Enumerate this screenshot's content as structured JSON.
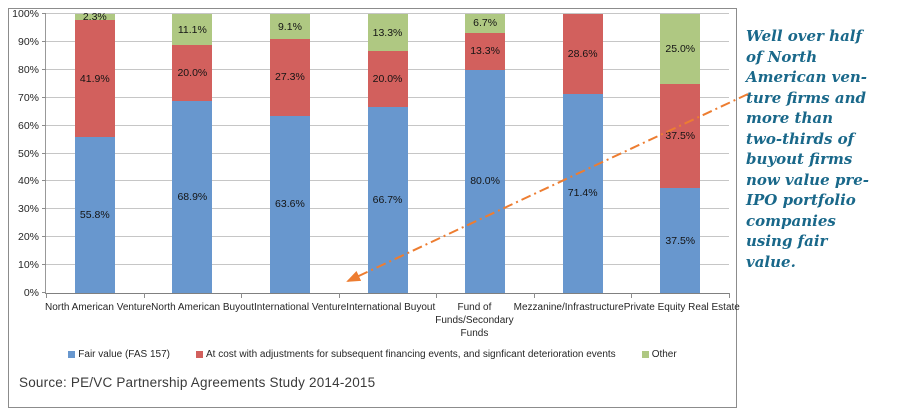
{
  "chart_data": {
    "type": "bar",
    "stacked": true,
    "categories": [
      "North American Venture",
      "North American Buyout",
      "International Venture",
      "International Buyout",
      "Fund of Funds/Secondary Funds",
      "Mezzanine/Infrastructure",
      "Private Equity Real Estate"
    ],
    "series": [
      {
        "name": "Fair value (FAS 157)",
        "color": "#6897CE",
        "values": [
          55.8,
          68.9,
          63.6,
          66.7,
          80.0,
          71.4,
          37.5
        ]
      },
      {
        "name": "At cost with adjustments for subsequent financing events, and signficant deterioration events",
        "color": "#D2605D",
        "values": [
          41.9,
          20.0,
          27.3,
          20.0,
          13.3,
          28.6,
          37.5
        ]
      },
      {
        "name": "Other",
        "color": "#AFC882",
        "values": [
          2.3,
          11.1,
          9.1,
          13.3,
          6.7,
          0,
          25.0
        ]
      }
    ],
    "y_ticks": [
      0,
      10,
      20,
      30,
      40,
      50,
      60,
      70,
      80,
      90,
      100
    ],
    "ylim": [
      0,
      100
    ],
    "grid": true,
    "legend_position": "bottom",
    "value_suffix": "%"
  },
  "source": {
    "text": "Source: PE/VC Partnership Agreements Study 2014-2015"
  },
  "annotation": {
    "color": "#19688A",
    "lines": [
      "Well over half",
      "of North",
      "American ven-",
      "ture firms and",
      "more than",
      "two-thirds of",
      "buyout firms",
      "now value pre-",
      "IPO portfolio",
      "companies",
      "using fair",
      "value."
    ]
  },
  "arrow": {
    "color": "#ED7D31"
  }
}
